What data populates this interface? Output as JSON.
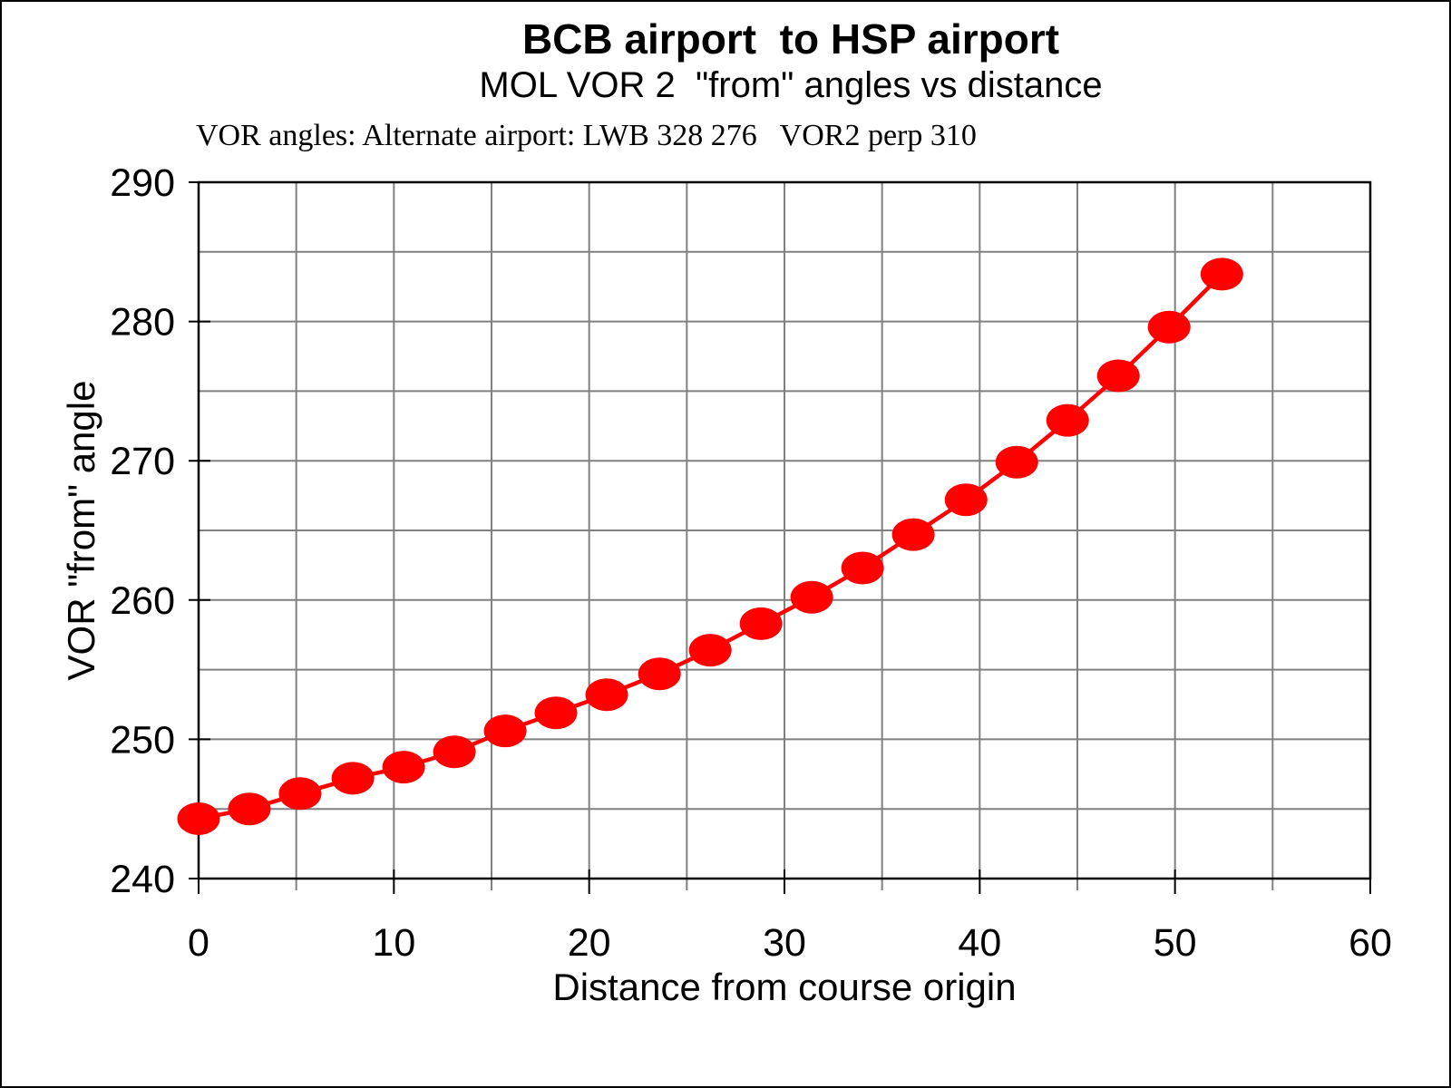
{
  "title": "BCB airport  to HSP airport",
  "subtitle": "MOL VOR 2  \"from\" angles vs distance",
  "annotation": "VOR angles: Alternate airport: LWB 328 276   VOR2 perp 310",
  "chart_data": {
    "type": "line",
    "title": "BCB airport  to HSP airport",
    "subtitle": "MOL VOR 2  \"from\" angles vs distance",
    "xlabel": "Distance from course origin",
    "ylabel": "VOR \"from\" angle",
    "xlim": [
      0,
      60
    ],
    "ylim": [
      240,
      290
    ],
    "x_ticks": [
      0,
      10,
      20,
      30,
      40,
      50,
      60
    ],
    "y_ticks": [
      240,
      250,
      260,
      270,
      280,
      290
    ],
    "grid_interval": 5,
    "grid": "both, every 5 units, gray",
    "legend": "none",
    "marker": "filled-ellipse",
    "series": [
      {
        "name": "MOL VOR 2 from angle",
        "x": [
          0,
          2.6,
          5.2,
          7.9,
          10.5,
          13.1,
          15.7,
          18.3,
          20.9,
          23.6,
          26.2,
          28.8,
          31.4,
          34.0,
          36.6,
          39.3,
          41.9,
          44.5,
          47.1,
          49.7,
          52.4
        ],
        "y": [
          244.3,
          245.0,
          246.1,
          247.2,
          248.0,
          249.1,
          250.6,
          251.9,
          253.2,
          254.7,
          256.4,
          258.3,
          260.2,
          262.3,
          264.7,
          267.2,
          269.9,
          272.9,
          276.1,
          279.6,
          283.4
        ]
      }
    ],
    "colors": {
      "series": "#FF0000",
      "gridline": "#808080",
      "axis": "#000000",
      "background": "#FFFFFF"
    }
  }
}
